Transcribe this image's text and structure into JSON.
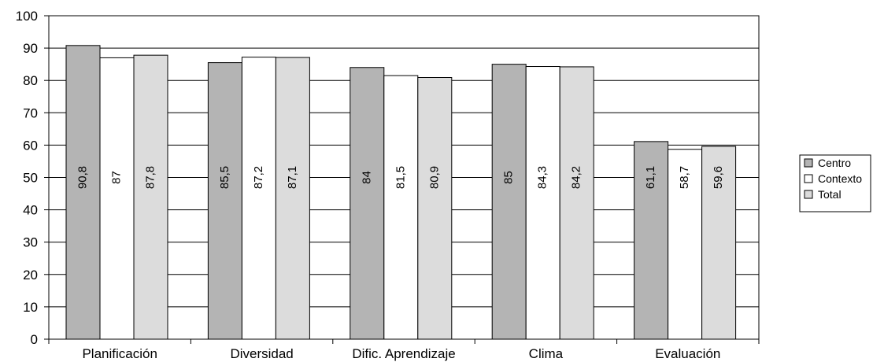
{
  "chart_data": {
    "type": "bar",
    "categories": [
      "Planificación",
      "Diversidad",
      "Dific. Aprendizaje",
      "Clima",
      "Evaluación"
    ],
    "series": [
      {
        "name": "Centro",
        "values": [
          90.8,
          85.5,
          84,
          85,
          61.1
        ],
        "labels": [
          "90,8",
          "85,5",
          "84",
          "85",
          "61,1"
        ],
        "color": "#b4b4b4"
      },
      {
        "name": "Contexto",
        "values": [
          87,
          87.2,
          81.5,
          84.3,
          58.7
        ],
        "labels": [
          "87",
          "87,2",
          "81,5",
          "84,3",
          "58,7"
        ],
        "color": "#ffffff"
      },
      {
        "name": "Total",
        "values": [
          87.8,
          87.1,
          80.9,
          84.2,
          59.6
        ],
        "labels": [
          "87,8",
          "87,1",
          "80,9",
          "84,2",
          "59,6"
        ],
        "color": "#dcdcdc"
      }
    ],
    "ylim": [
      0,
      100
    ],
    "yticks": [
      0,
      10,
      20,
      30,
      40,
      50,
      60,
      70,
      80,
      90,
      100
    ],
    "grid": true,
    "legend": "right",
    "title": "",
    "xlabel": "",
    "ylabel": ""
  }
}
